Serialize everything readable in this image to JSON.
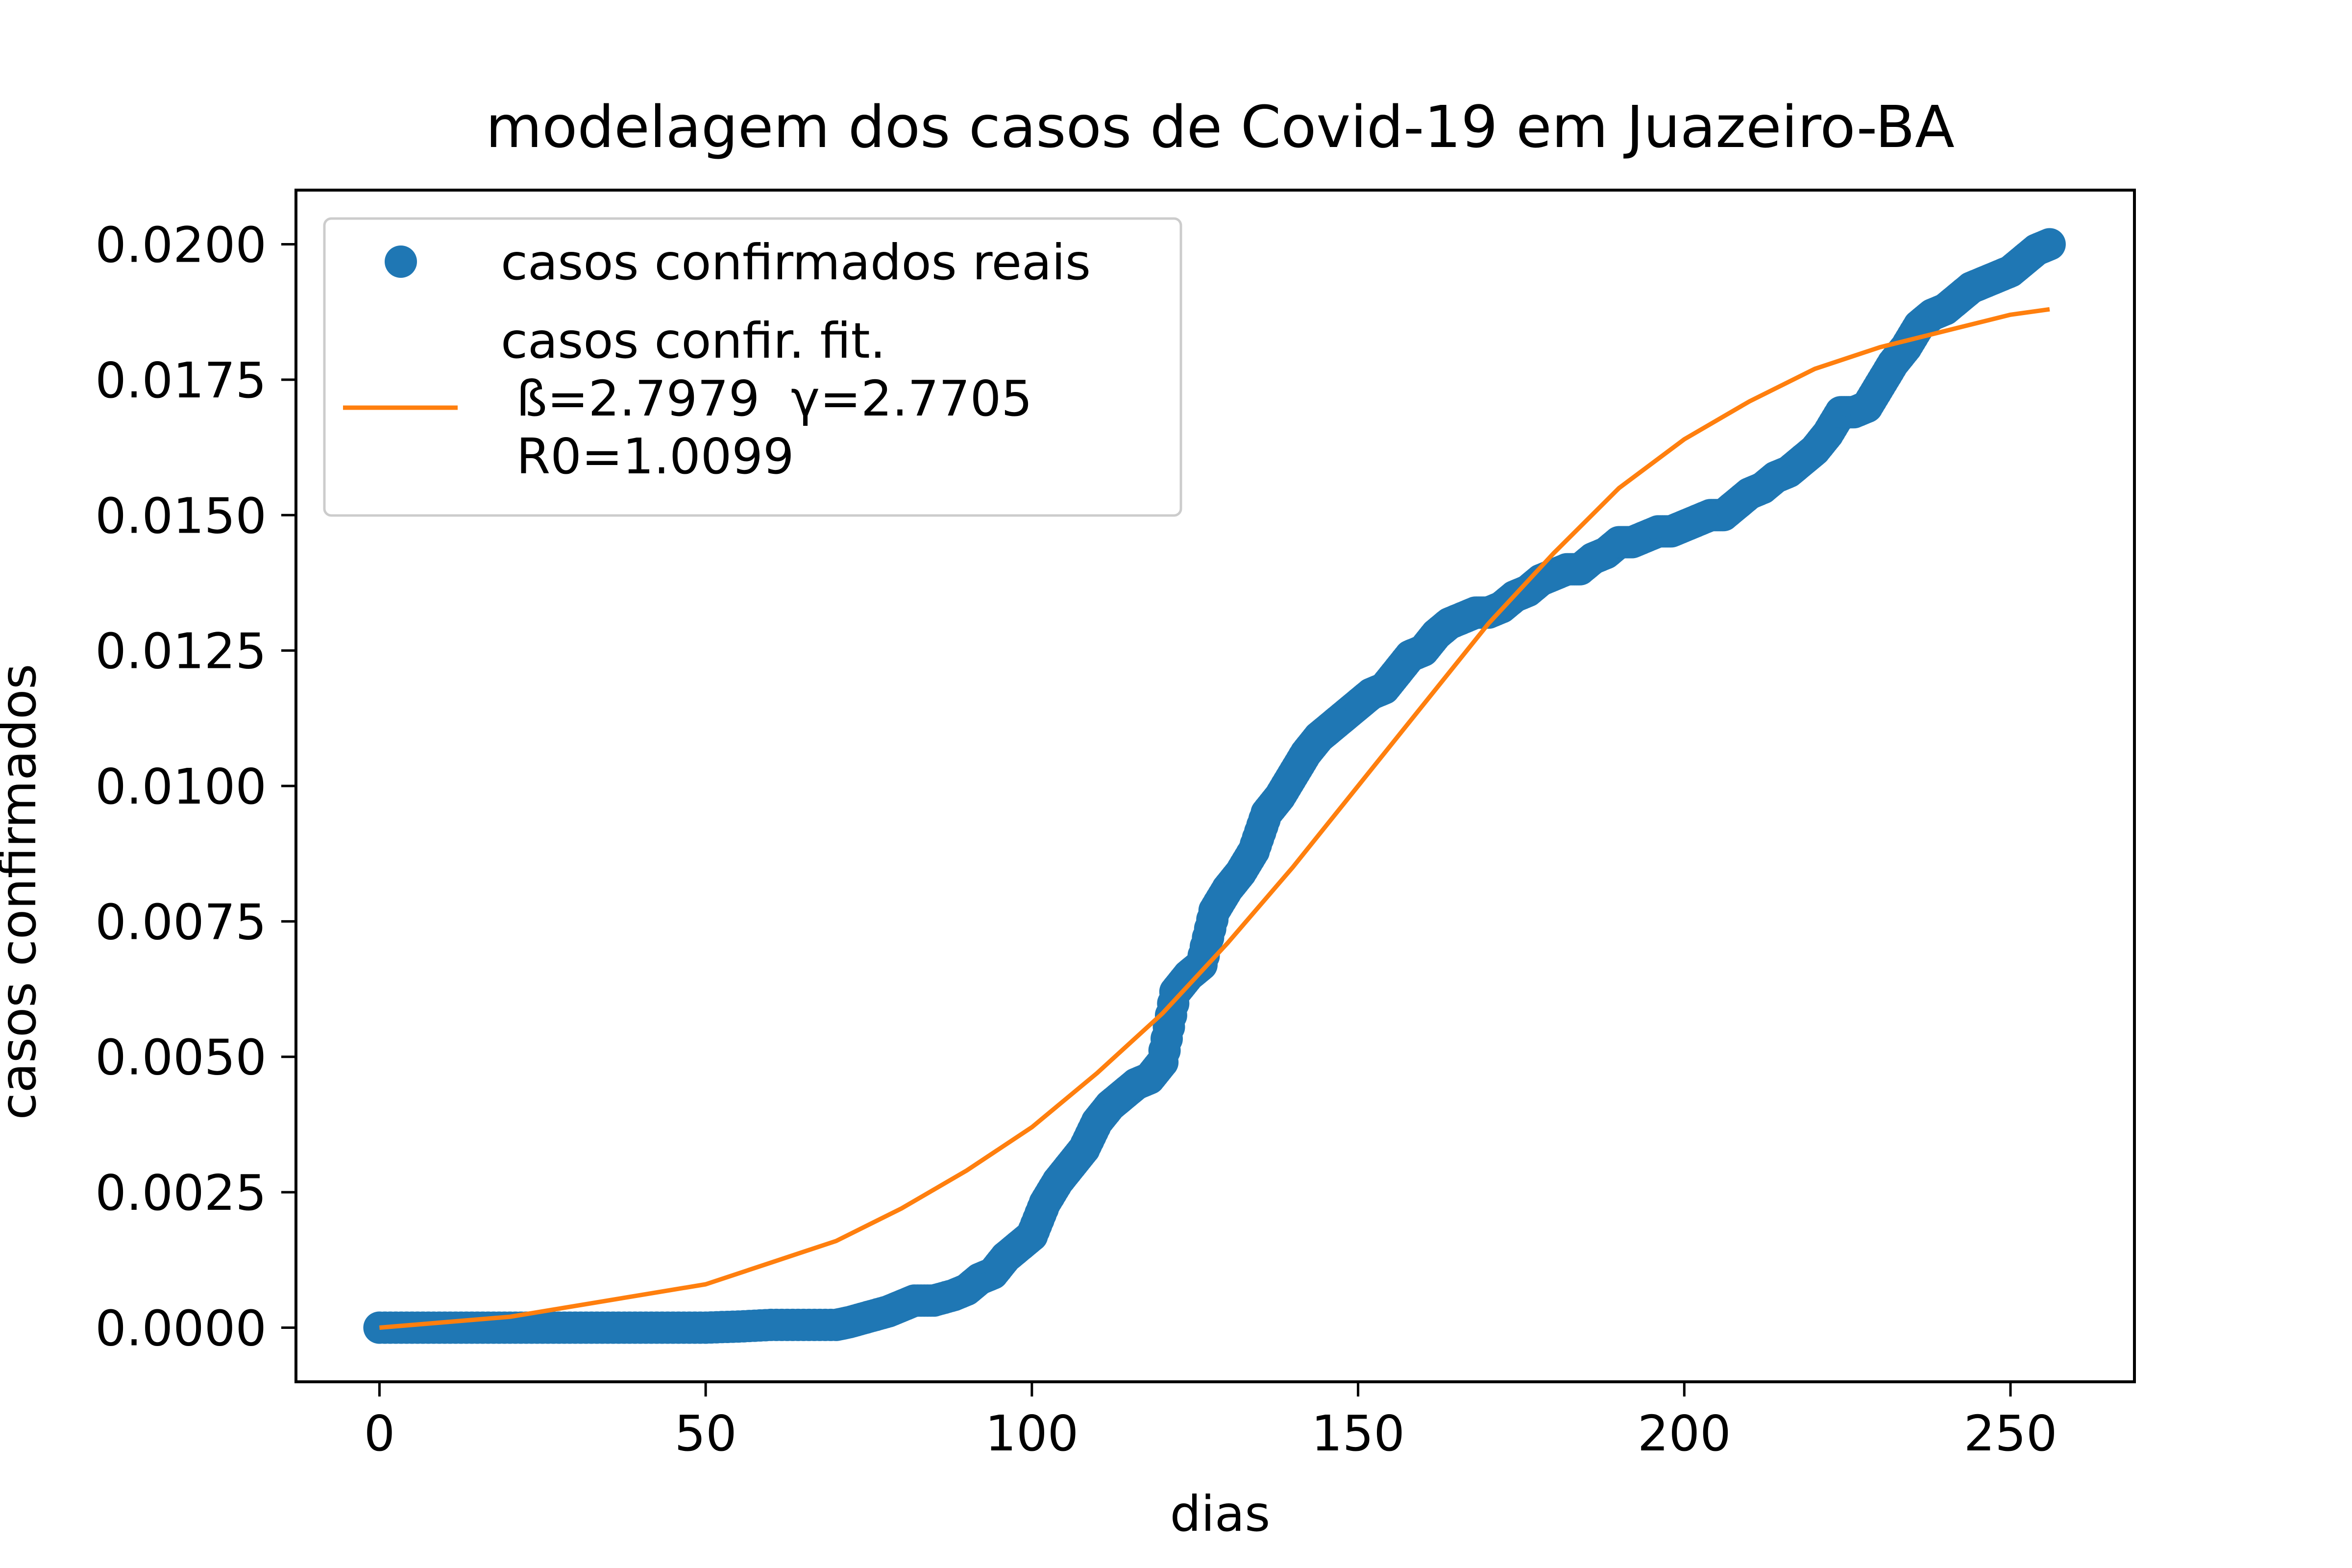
{
  "chart_data": {
    "type": "scatter",
    "title": "modelagem dos casos de Covid-19 em Juazeiro-BA",
    "xlabel": "dias",
    "ylabel": "casos confirmados",
    "xlim": [
      -12.8,
      269
    ],
    "ylim": [
      -0.001,
      0.021
    ],
    "x_ticks": [
      0,
      50,
      100,
      150,
      200,
      250
    ],
    "x_tick_labels": [
      "0",
      "50",
      "100",
      "150",
      "200",
      "250"
    ],
    "y_ticks": [
      0,
      0.0025,
      0.005,
      0.0075,
      0.01,
      0.0125,
      0.015,
      0.0175,
      0.02
    ],
    "y_tick_labels": [
      "0.0000",
      "0.0025",
      "0.0050",
      "0.0075",
      "0.0100",
      "0.0125",
      "0.0150",
      "0.0175",
      "0.0200"
    ],
    "grid": false,
    "legend_position": "upper-left",
    "series": [
      {
        "name": "casos confirmados reais",
        "kind": "scatter",
        "color": "#1f77b4",
        "x": [
          0,
          5,
          10,
          15,
          20,
          25,
          30,
          35,
          40,
          45,
          50,
          55,
          60,
          65,
          70,
          72,
          75,
          78,
          80,
          82,
          85,
          88,
          90,
          92,
          94,
          96,
          98,
          100,
          102,
          104,
          106,
          108,
          110,
          112,
          114,
          116,
          118,
          120,
          122,
          124,
          126,
          128,
          130,
          132,
          134,
          136,
          138,
          140,
          142,
          144,
          146,
          148,
          150,
          152,
          154,
          156,
          158,
          160,
          162,
          164,
          166,
          168,
          170,
          172,
          174,
          176,
          178,
          180,
          182,
          184,
          186,
          188,
          190,
          192,
          194,
          196,
          198,
          200,
          202,
          204,
          206,
          208,
          210,
          212,
          214,
          216,
          218,
          220,
          222,
          224,
          226,
          228,
          230,
          232,
          234,
          236,
          238,
          240,
          242,
          244,
          246,
          248,
          250,
          252,
          254,
          256
        ],
        "y": [
          0,
          0,
          0,
          0,
          0,
          0,
          0,
          0,
          0,
          0,
          0,
          2e-05,
          5e-05,
          5e-05,
          5e-05,
          0.0001,
          0.0002,
          0.0003,
          0.0004,
          0.0005,
          0.0005,
          0.0006,
          0.0007,
          0.0009,
          0.001,
          0.0013,
          0.0015,
          0.0017,
          0.0023,
          0.0027,
          0.003,
          0.0033,
          0.0038,
          0.0041,
          0.0043,
          0.0045,
          0.0046,
          0.0049,
          0.0062,
          0.0065,
          0.0067,
          0.0077,
          0.0081,
          0.0084,
          0.0088,
          0.0095,
          0.0098,
          0.0102,
          0.0106,
          0.0109,
          0.0111,
          0.0113,
          0.0115,
          0.0117,
          0.0118,
          0.0121,
          0.0124,
          0.0125,
          0.0128,
          0.013,
          0.0131,
          0.0132,
          0.0132,
          0.0133,
          0.0135,
          0.0136,
          0.0138,
          0.0139,
          0.014,
          0.014,
          0.0142,
          0.0143,
          0.0145,
          0.0145,
          0.0146,
          0.0147,
          0.0147,
          0.0148,
          0.0149,
          0.015,
          0.015,
          0.0152,
          0.0154,
          0.0155,
          0.0157,
          0.0158,
          0.016,
          0.0162,
          0.0165,
          0.0169,
          0.0169,
          0.017,
          0.0174,
          0.0178,
          0.0181,
          0.0185,
          0.0187,
          0.0188,
          0.019,
          0.0192,
          0.0193,
          0.0194,
          0.0195,
          0.0197,
          0.0199,
          0.02
        ]
      },
      {
        "name": "casos confir. fit.\n ß=2.7979  γ=2.7705\n R0=1.0099",
        "kind": "line",
        "color": "#ff7f0e",
        "x": [
          0,
          10,
          20,
          30,
          40,
          50,
          60,
          70,
          80,
          90,
          100,
          110,
          120,
          130,
          140,
          150,
          160,
          170,
          180,
          190,
          200,
          210,
          220,
          230,
          240,
          250,
          256
        ],
        "y": [
          0,
          0.0001,
          0.0002,
          0.0004,
          0.0006,
          0.0008,
          0.0012,
          0.0016,
          0.0022,
          0.0029,
          0.0037,
          0.0047,
          0.0058,
          0.0071,
          0.0085,
          0.01,
          0.0115,
          0.013,
          0.0143,
          0.0155,
          0.0164,
          0.0171,
          0.0177,
          0.0181,
          0.0184,
          0.0187,
          0.0188
        ]
      }
    ]
  }
}
